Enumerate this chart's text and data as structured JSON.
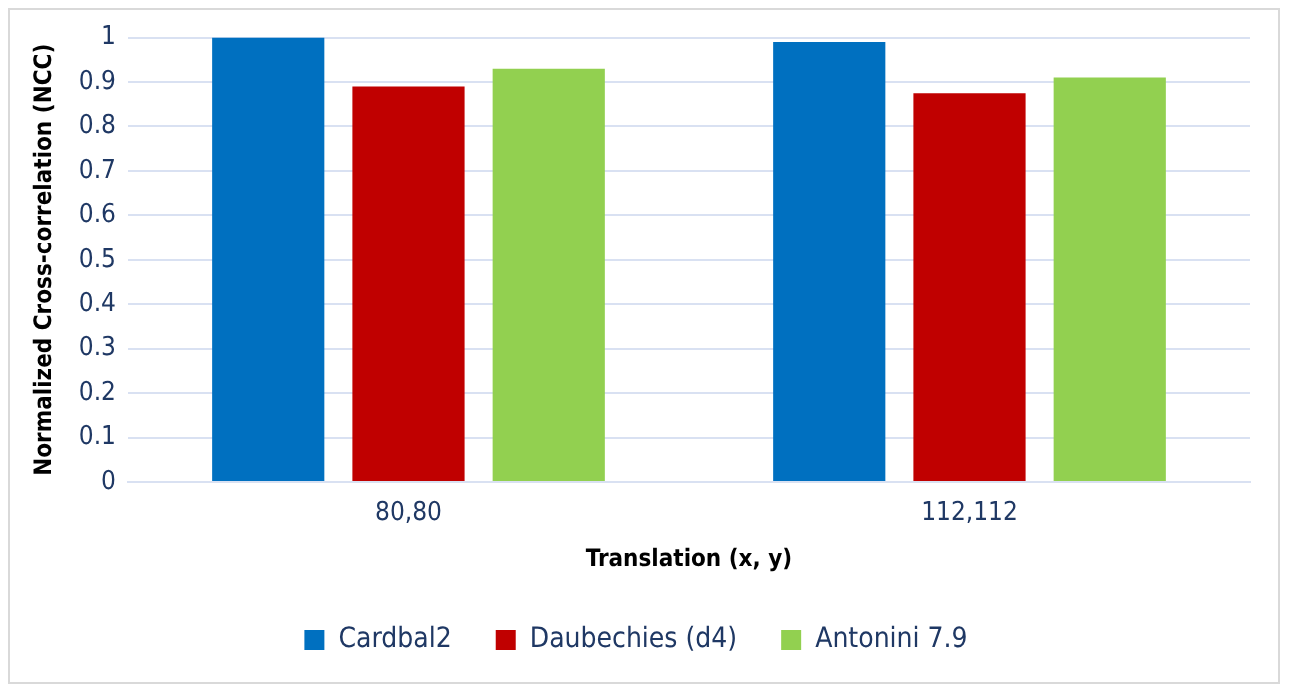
{
  "chart_data": {
    "type": "bar",
    "xlabel": "Translation (x, y)",
    "ylabel": "Normalized Cross-correlation (NCC)",
    "categories": [
      "80,80",
      "112,112"
    ],
    "series": [
      {
        "name": "Cardbal2",
        "color": "#0070c0",
        "values": [
          1.0,
          0.99
        ]
      },
      {
        "name": "Daubechies (d4)",
        "color": "#c00000",
        "values": [
          0.89,
          0.875
        ]
      },
      {
        "name": "Antonini 7.9",
        "color": "#92d050",
        "values": [
          0.93,
          0.91
        ]
      }
    ],
    "ylim": [
      0,
      1
    ],
    "yticks": [
      0,
      0.1,
      0.2,
      0.3,
      0.4,
      0.5,
      0.6,
      0.7,
      0.8,
      0.9,
      1
    ],
    "grid": "y",
    "legend": "bottom"
  }
}
